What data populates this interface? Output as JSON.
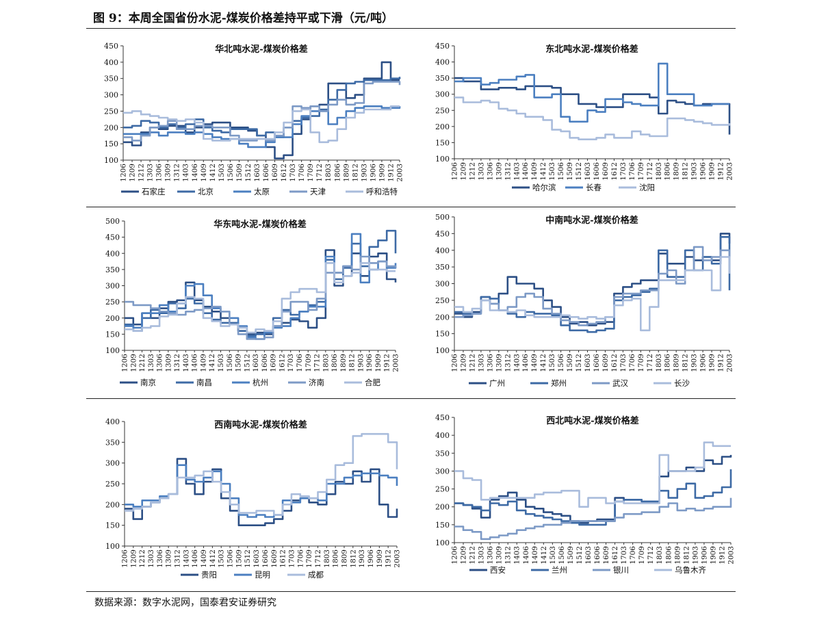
{
  "figure_title": "图 9：本周全国省份水泥-煤炭价格差持平或下滑（元/吨）",
  "source": "数据来源：数字水泥网，国泰君安证券研究",
  "x_ticks": [
    "1206",
    "1209",
    "1212",
    "1303",
    "1306",
    "1309",
    "1312",
    "1403",
    "1406",
    "1409",
    "1412",
    "1503",
    "1506",
    "1509",
    "1512",
    "1603",
    "1606",
    "1609",
    "1612",
    "1703",
    "1706",
    "1709",
    "1712",
    "1803",
    "1806",
    "1809",
    "1812",
    "1903",
    "1906",
    "1909",
    "1912",
    "2003"
  ],
  "chart_data": [
    {
      "id": "north",
      "type": "line",
      "title": "华北吨水泥-煤炭价格差",
      "ylim": [
        100,
        450
      ],
      "yticks": [
        100,
        150,
        200,
        250,
        300,
        350,
        400,
        450
      ],
      "series": [
        {
          "name": "石家庄",
          "color": "#2c4f85",
          "values": [
            155,
            145,
            185,
            200,
            195,
            205,
            205,
            185,
            200,
            210,
            215,
            215,
            200,
            200,
            190,
            175,
            140,
            105,
            115,
            180,
            225,
            265,
            270,
            335,
            335,
            290,
            300,
            350,
            350,
            400,
            345,
            345
          ]
        },
        {
          "name": "北京",
          "color": "#3d6aa5",
          "values": [
            200,
            205,
            220,
            215,
            200,
            210,
            200,
            210,
            225,
            200,
            190,
            185,
            195,
            195,
            195,
            175,
            185,
            170,
            200,
            220,
            230,
            235,
            255,
            285,
            315,
            335,
            340,
            345,
            345,
            345,
            350,
            355
          ]
        },
        {
          "name": "太原",
          "color": "#4b7fc0",
          "values": [
            180,
            180,
            180,
            185,
            175,
            185,
            185,
            180,
            185,
            180,
            170,
            165,
            165,
            150,
            140,
            140,
            155,
            170,
            170,
            210,
            235,
            250,
            250,
            210,
            230,
            250,
            260,
            265,
            265,
            260,
            260,
            265
          ]
        },
        {
          "name": "天津",
          "color": "#7d9ac6",
          "values": [
            170,
            160,
            175,
            200,
            205,
            220,
            195,
            195,
            205,
            205,
            200,
            200,
            175,
            160,
            160,
            165,
            160,
            175,
            200,
            265,
            260,
            265,
            250,
            270,
            285,
            270,
            275,
            335,
            340,
            340,
            340,
            330
          ]
        },
        {
          "name": "呼和浩特",
          "color": "#a9bcdc",
          "values": [
            245,
            250,
            240,
            235,
            230,
            225,
            220,
            225,
            215,
            165,
            160,
            160,
            165,
            165,
            165,
            165,
            165,
            185,
            215,
            250,
            255,
            185,
            155,
            160,
            195,
            230,
            245,
            255,
            255,
            255,
            265,
            265
          ]
        }
      ]
    },
    {
      "id": "northeast",
      "type": "line",
      "title": "东北吨水泥-煤炭价格差",
      "ylim": [
        100,
        450
      ],
      "yticks": [
        100,
        150,
        200,
        250,
        300,
        350,
        400,
        450
      ],
      "series": [
        {
          "name": "哈尔滨",
          "color": "#2c4f85",
          "values": [
            350,
            340,
            340,
            315,
            315,
            320,
            320,
            315,
            325,
            325,
            325,
            320,
            300,
            300,
            270,
            270,
            260,
            260,
            260,
            300,
            300,
            300,
            290,
            240,
            280,
            275,
            270,
            265,
            270,
            270,
            270,
            175
          ]
        },
        {
          "name": "长春",
          "color": "#4b7fc0",
          "values": [
            340,
            350,
            350,
            330,
            335,
            345,
            345,
            355,
            360,
            290,
            290,
            300,
            230,
            215,
            215,
            250,
            245,
            285,
            285,
            275,
            270,
            265,
            265,
            395,
            300,
            300,
            300,
            265,
            265,
            270,
            270,
            270
          ]
        },
        {
          "name": "沈阳",
          "color": "#a9bcdc",
          "values": [
            290,
            275,
            275,
            280,
            275,
            255,
            250,
            240,
            230,
            230,
            220,
            190,
            185,
            165,
            160,
            160,
            165,
            175,
            165,
            165,
            185,
            175,
            170,
            170,
            225,
            225,
            220,
            215,
            210,
            205,
            205,
            210
          ]
        }
      ]
    },
    {
      "id": "east",
      "type": "line",
      "title": "华东吨水泥-煤炭价格差",
      "ylim": [
        100,
        500
      ],
      "yticks": [
        100,
        150,
        200,
        250,
        300,
        350,
        400,
        450,
        500
      ],
      "series": [
        {
          "name": "南京",
          "color": "#2c4f85",
          "values": [
            200,
            180,
            215,
            200,
            230,
            250,
            255,
            310,
            255,
            235,
            220,
            200,
            185,
            160,
            150,
            155,
            150,
            175,
            185,
            195,
            190,
            170,
            200,
            410,
            300,
            330,
            400,
            330,
            390,
            400,
            320,
            310
          ]
        },
        {
          "name": "南昌",
          "color": "#3d6aa5",
          "values": [
            180,
            160,
            200,
            225,
            215,
            245,
            230,
            260,
            245,
            215,
            195,
            185,
            185,
            160,
            145,
            150,
            160,
            200,
            225,
            210,
            220,
            240,
            250,
            380,
            320,
            355,
            430,
            360,
            420,
            440,
            470,
            400
          ]
        },
        {
          "name": "杭州",
          "color": "#4b7fc0",
          "values": [
            175,
            170,
            215,
            215,
            240,
            220,
            245,
            300,
            305,
            270,
            230,
            220,
            200,
            175,
            140,
            135,
            155,
            170,
            175,
            200,
            220,
            235,
            235,
            390,
            340,
            360,
            460,
            310,
            350,
            375,
            355,
            370
          ]
        },
        {
          "name": "济南",
          "color": "#7d9ac6",
          "values": [
            250,
            240,
            240,
            230,
            220,
            215,
            210,
            220,
            225,
            230,
            235,
            220,
            180,
            150,
            135,
            135,
            140,
            175,
            220,
            250,
            250,
            225,
            260,
            340,
            340,
            360,
            350,
            390,
            370,
            375,
            360,
            355
          ]
        },
        {
          "name": "合肥",
          "color": "#a9bcdc",
          "values": [
            165,
            160,
            170,
            175,
            205,
            210,
            245,
            265,
            260,
            200,
            190,
            175,
            180,
            170,
            155,
            165,
            160,
            190,
            260,
            280,
            290,
            290,
            280,
            370,
            310,
            330,
            340,
            370,
            350,
            350,
            345,
            345
          ]
        }
      ]
    },
    {
      "id": "central-south",
      "type": "line",
      "title": "中南吨水泥-煤炭价格差",
      "ylim": [
        100,
        500
      ],
      "yticks": [
        100,
        150,
        200,
        250,
        300,
        350,
        400,
        450,
        500
      ],
      "series": [
        {
          "name": "广州",
          "color": "#2c4f85",
          "values": [
            210,
            200,
            215,
            260,
            240,
            270,
            320,
            300,
            300,
            285,
            250,
            230,
            200,
            180,
            185,
            175,
            180,
            185,
            270,
            290,
            300,
            310,
            310,
            390,
            360,
            360,
            380,
            370,
            380,
            370,
            450,
            420
          ]
        },
        {
          "name": "郑州",
          "color": "#3d6aa5",
          "values": [
            215,
            210,
            210,
            260,
            255,
            220,
            210,
            200,
            215,
            210,
            210,
            205,
            175,
            160,
            160,
            155,
            160,
            165,
            250,
            260,
            265,
            275,
            285,
            400,
            320,
            320,
            400,
            340,
            380,
            360,
            440,
            280
          ]
        },
        {
          "name": "武汉",
          "color": "#7d9ac6",
          "values": [
            200,
            205,
            210,
            250,
            240,
            220,
            230,
            260,
            270,
            260,
            225,
            210,
            190,
            185,
            175,
            180,
            185,
            200,
            260,
            270,
            270,
            280,
            280,
            330,
            340,
            300,
            340,
            410,
            370,
            380,
            400,
            380
          ]
        },
        {
          "name": "长沙",
          "color": "#a9bcdc",
          "values": [
            230,
            215,
            225,
            250,
            220,
            220,
            215,
            220,
            205,
            200,
            200,
            200,
            205,
            200,
            195,
            200,
            195,
            200,
            235,
            250,
            255,
            160,
            230,
            310,
            310,
            310,
            340,
            340,
            340,
            280,
            380,
            330
          ]
        }
      ]
    },
    {
      "id": "southwest",
      "type": "line",
      "title": "西南吨水泥-煤炭价格差",
      "ylim": [
        100,
        400
      ],
      "yticks": [
        100,
        150,
        200,
        250,
        300,
        350,
        400
      ],
      "series": [
        {
          "name": "贵阳",
          "color": "#2c4f85",
          "values": [
            190,
            165,
            195,
            205,
            215,
            225,
            310,
            250,
            225,
            255,
            285,
            215,
            185,
            150,
            150,
            150,
            155,
            165,
            185,
            210,
            215,
            205,
            200,
            225,
            255,
            250,
            280,
            255,
            285,
            200,
            170,
            190
          ]
        },
        {
          "name": "昆明",
          "color": "#4b7fc0",
          "values": [
            200,
            195,
            210,
            210,
            220,
            225,
            295,
            260,
            255,
            265,
            280,
            250,
            215,
            175,
            170,
            175,
            170,
            175,
            210,
            205,
            215,
            215,
            210,
            250,
            250,
            265,
            270,
            275,
            275,
            270,
            265,
            245
          ]
        },
        {
          "name": "成都",
          "color": "#a9bcdc",
          "values": [
            185,
            190,
            195,
            205,
            215,
            225,
            265,
            265,
            270,
            280,
            255,
            230,
            200,
            180,
            180,
            185,
            185,
            175,
            200,
            225,
            220,
            215,
            230,
            260,
            295,
            300,
            365,
            370,
            370,
            370,
            350,
            285
          ]
        }
      ]
    },
    {
      "id": "northwest",
      "type": "line",
      "title": "西北吨水泥-煤炭价格差",
      "ylim": [
        100,
        450
      ],
      "yticks": [
        100,
        150,
        200,
        250,
        300,
        350,
        400,
        450
      ],
      "series": [
        {
          "name": "西安",
          "color": "#2c4f85",
          "values": [
            210,
            205,
            195,
            170,
            220,
            230,
            240,
            220,
            200,
            195,
            185,
            180,
            175,
            160,
            155,
            160,
            165,
            165,
            225,
            220,
            220,
            215,
            215,
            285,
            300,
            300,
            310,
            300,
            330,
            320,
            340,
            345
          ]
        },
        {
          "name": "兰州",
          "color": "#3d6aa5",
          "values": [
            210,
            205,
            200,
            190,
            210,
            205,
            215,
            190,
            180,
            175,
            170,
            165,
            160,
            155,
            150,
            150,
            150,
            160,
            215,
            220,
            220,
            215,
            215,
            245,
            225,
            250,
            265,
            225,
            230,
            240,
            255,
            305
          ]
        },
        {
          "name": "银川",
          "color": "#7d9ac6",
          "values": [
            145,
            135,
            130,
            110,
            115,
            120,
            125,
            135,
            140,
            145,
            150,
            150,
            155,
            160,
            160,
            160,
            160,
            160,
            170,
            180,
            180,
            185,
            185,
            200,
            210,
            190,
            195,
            190,
            195,
            200,
            200,
            225
          ]
        },
        {
          "name": "乌鲁木齐",
          "color": "#a9bcdc",
          "values": [
            300,
            280,
            275,
            220,
            225,
            225,
            225,
            225,
            225,
            235,
            240,
            240,
            245,
            245,
            200,
            225,
            225,
            210,
            215,
            210,
            210,
            210,
            210,
            345,
            300,
            300,
            300,
            310,
            380,
            370,
            370,
            370
          ]
        }
      ]
    }
  ]
}
